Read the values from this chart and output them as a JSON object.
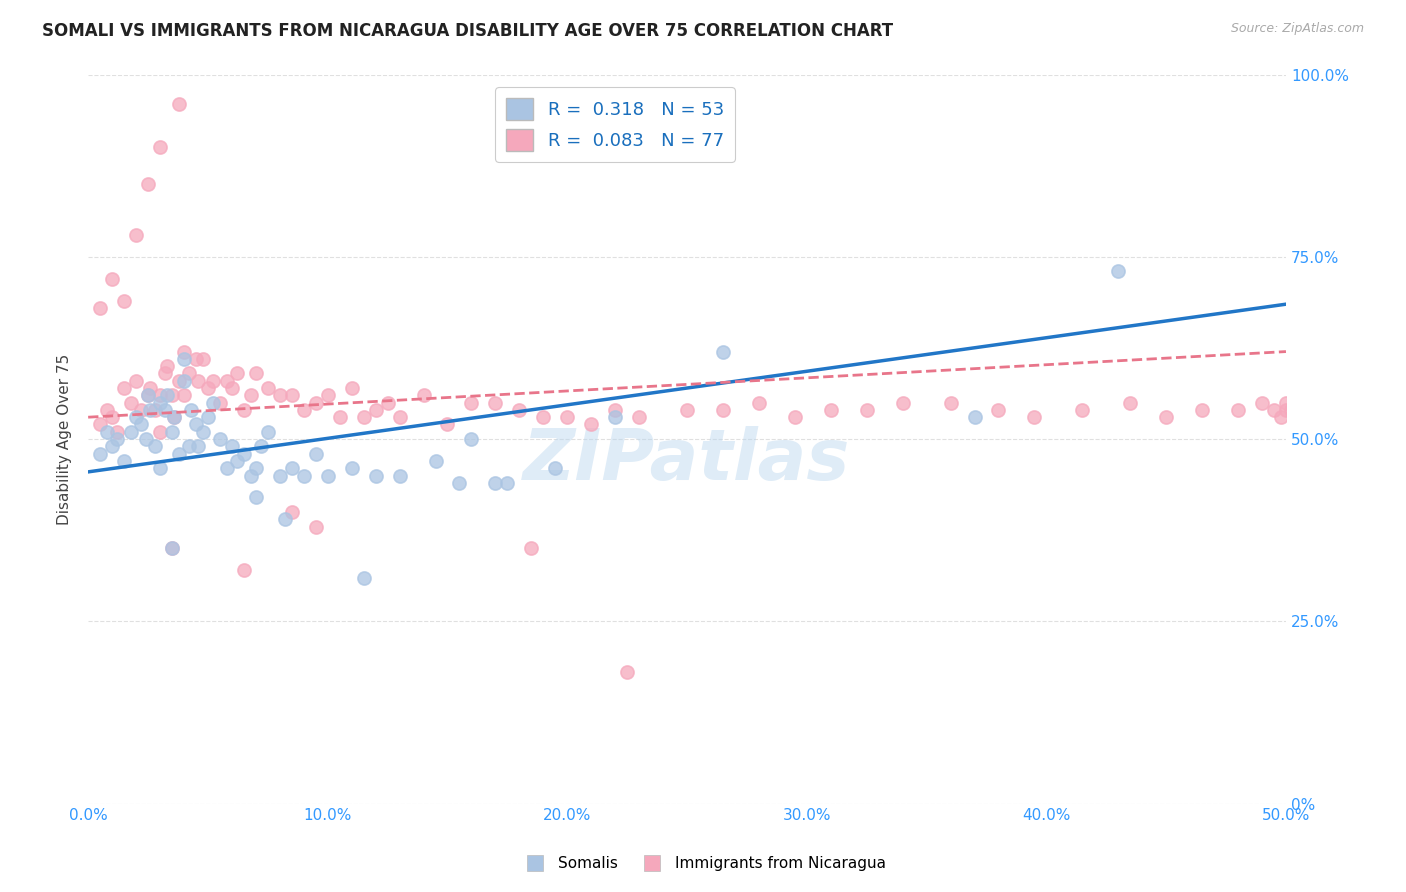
{
  "title": "SOMALI VS IMMIGRANTS FROM NICARAGUA DISABILITY AGE OVER 75 CORRELATION CHART",
  "source": "Source: ZipAtlas.com",
  "ylabel_label": "Disability Age Over 75",
  "xlim": [
    0,
    0.5
  ],
  "ylim": [
    0,
    1.0
  ],
  "somali_R": 0.318,
  "nicaragua_R": 0.083,
  "somali_N": 53,
  "nicaragua_N": 77,
  "somali_color": "#aac4e2",
  "nicaragua_color": "#f5a8bc",
  "somali_line_color": "#2176c7",
  "nicaragua_line_color": "#e8758a",
  "background_color": "#ffffff",
  "grid_color": "#e0e0e0",
  "watermark": "ZIPatlas",
  "somali_x": [
    0.005,
    0.008,
    0.01,
    0.012,
    0.015,
    0.018,
    0.02,
    0.022,
    0.024,
    0.025,
    0.026,
    0.028,
    0.03,
    0.03,
    0.032,
    0.033,
    0.035,
    0.036,
    0.038,
    0.04,
    0.04,
    0.042,
    0.043,
    0.045,
    0.046,
    0.048,
    0.05,
    0.052,
    0.055,
    0.058,
    0.06,
    0.062,
    0.065,
    0.068,
    0.07,
    0.072,
    0.075,
    0.08,
    0.085,
    0.09,
    0.095,
    0.1,
    0.11,
    0.12,
    0.13,
    0.145,
    0.16,
    0.175,
    0.195,
    0.22,
    0.265,
    0.37,
    0.43
  ],
  "somali_y": [
    0.48,
    0.51,
    0.49,
    0.5,
    0.47,
    0.51,
    0.53,
    0.52,
    0.5,
    0.56,
    0.54,
    0.49,
    0.46,
    0.55,
    0.54,
    0.56,
    0.51,
    0.53,
    0.48,
    0.58,
    0.61,
    0.49,
    0.54,
    0.52,
    0.49,
    0.51,
    0.53,
    0.55,
    0.5,
    0.46,
    0.49,
    0.47,
    0.48,
    0.45,
    0.46,
    0.49,
    0.51,
    0.45,
    0.46,
    0.45,
    0.48,
    0.45,
    0.46,
    0.45,
    0.45,
    0.47,
    0.5,
    0.44,
    0.46,
    0.53,
    0.62,
    0.53,
    0.73
  ],
  "somali_y_low": [
    0.35,
    0.42,
    0.39,
    0.31,
    0.44,
    0.44
  ],
  "somali_x_low": [
    0.035,
    0.07,
    0.082,
    0.115,
    0.155,
    0.17
  ],
  "nicaragua_x": [
    0.005,
    0.008,
    0.01,
    0.012,
    0.015,
    0.018,
    0.02,
    0.022,
    0.025,
    0.026,
    0.028,
    0.03,
    0.03,
    0.032,
    0.033,
    0.035,
    0.036,
    0.038,
    0.04,
    0.04,
    0.042,
    0.045,
    0.046,
    0.048,
    0.05,
    0.052,
    0.055,
    0.058,
    0.06,
    0.062,
    0.065,
    0.068,
    0.07,
    0.075,
    0.08,
    0.085,
    0.09,
    0.095,
    0.1,
    0.105,
    0.11,
    0.115,
    0.12,
    0.125,
    0.13,
    0.14,
    0.15,
    0.16,
    0.17,
    0.18,
    0.19,
    0.2,
    0.21,
    0.22,
    0.23,
    0.25,
    0.265,
    0.28,
    0.295,
    0.31,
    0.325,
    0.34,
    0.36,
    0.38,
    0.395,
    0.415,
    0.435,
    0.45,
    0.465,
    0.48,
    0.49,
    0.495,
    0.498,
    0.5,
    0.5,
    0.502,
    0.505
  ],
  "nicaragua_y": [
    0.52,
    0.54,
    0.53,
    0.51,
    0.57,
    0.55,
    0.58,
    0.54,
    0.56,
    0.57,
    0.54,
    0.51,
    0.56,
    0.59,
    0.6,
    0.56,
    0.53,
    0.58,
    0.62,
    0.56,
    0.59,
    0.61,
    0.58,
    0.61,
    0.57,
    0.58,
    0.55,
    0.58,
    0.57,
    0.59,
    0.54,
    0.56,
    0.59,
    0.57,
    0.56,
    0.56,
    0.54,
    0.55,
    0.56,
    0.53,
    0.57,
    0.53,
    0.54,
    0.55,
    0.53,
    0.56,
    0.52,
    0.55,
    0.55,
    0.54,
    0.53,
    0.53,
    0.52,
    0.54,
    0.53,
    0.54,
    0.54,
    0.55,
    0.53,
    0.54,
    0.54,
    0.55,
    0.55,
    0.54,
    0.53,
    0.54,
    0.55,
    0.53,
    0.54,
    0.54,
    0.55,
    0.54,
    0.53,
    0.54,
    0.55,
    0.54,
    0.54
  ],
  "nicaragua_y_high": [
    0.68,
    0.72,
    0.69,
    0.78,
    0.85,
    0.9,
    0.96
  ],
  "nicaragua_x_high": [
    0.005,
    0.01,
    0.015,
    0.02,
    0.025,
    0.03,
    0.038
  ],
  "nicaragua_y_low": [
    0.35,
    0.32,
    0.4,
    0.38,
    0.35,
    0.18
  ],
  "nicaragua_x_low": [
    0.035,
    0.065,
    0.085,
    0.095,
    0.185,
    0.225
  ],
  "title_fontsize": 12,
  "axis_label_fontsize": 11,
  "tick_fontsize": 11,
  "legend_fontsize": 13
}
